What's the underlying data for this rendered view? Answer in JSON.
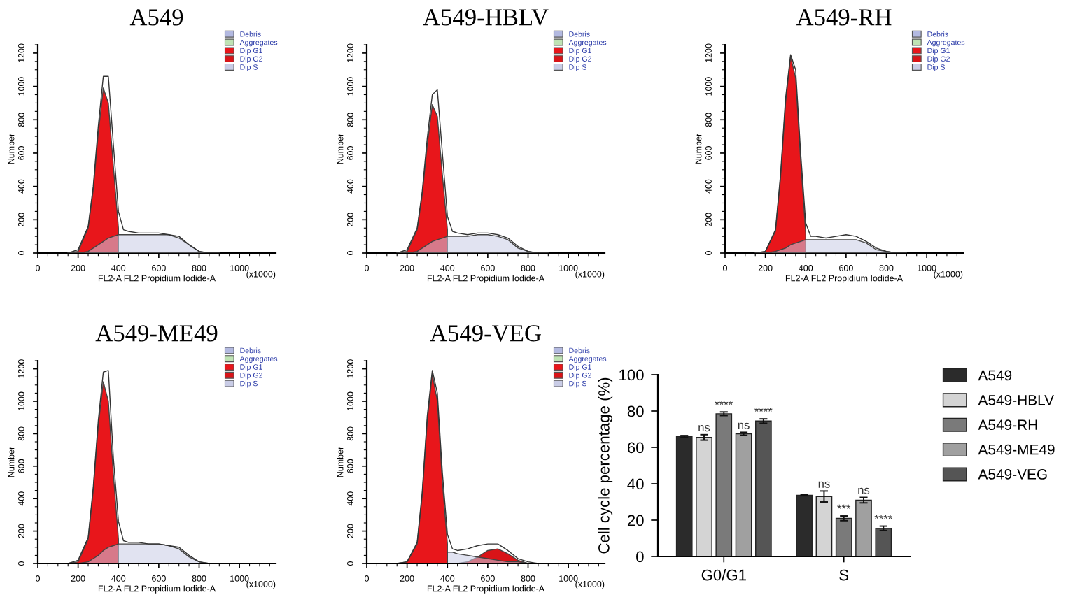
{
  "chart_data": [
    {
      "type": "area",
      "title": "A549",
      "xlabel": "FL2-A FL2 Propidium Iodide-A",
      "ylabel": "Number",
      "annotations": [
        "(x1000)"
      ],
      "xlim": [
        0,
        1180
      ],
      "ylim": [
        0,
        1250
      ],
      "xticks": [
        0,
        200,
        400,
        600,
        800,
        1000
      ],
      "yticks": [
        0,
        200,
        400,
        600,
        800,
        1000,
        1200
      ],
      "legend": "top right",
      "x": [
        150,
        200,
        250,
        275,
        300,
        325,
        350,
        375,
        400,
        425,
        450,
        500,
        550,
        600,
        650,
        700,
        750,
        800,
        850,
        900
      ],
      "series": [
        {
          "name": "Debris",
          "color": "#b3b9e0",
          "values": [
            null,
            null,
            null,
            null,
            null,
            null,
            null,
            null,
            null,
            null,
            null,
            null,
            null,
            null,
            null,
            null,
            null,
            null,
            null,
            null
          ]
        },
        {
          "name": "Aggregates",
          "color": "#bfe3b4",
          "values": [
            null,
            null,
            null,
            null,
            null,
            null,
            null,
            null,
            null,
            null,
            null,
            null,
            null,
            null,
            null,
            null,
            null,
            null,
            null,
            null
          ]
        },
        {
          "name": "Dip G1",
          "color": "#e8161b",
          "values": [
            0,
            10,
            150,
            380,
            720,
            990,
            900,
            520,
            150,
            null,
            null,
            null,
            null,
            null,
            null,
            null,
            null,
            null,
            null,
            null
          ]
        },
        {
          "name": "Dip G2",
          "color": "#d81418",
          "values": [
            null,
            null,
            null,
            null,
            null,
            null,
            null,
            null,
            null,
            null,
            null,
            null,
            null,
            null,
            null,
            null,
            null,
            null,
            null,
            null
          ]
        },
        {
          "name": "Dip S",
          "color": "#c9cce6",
          "values": [
            0,
            0,
            10,
            30,
            50,
            70,
            90,
            100,
            110,
            110,
            110,
            110,
            110,
            110,
            110,
            90,
            50,
            10,
            0,
            0
          ]
        },
        {
          "type": "line",
          "color": "#333333",
          "values": [
            0,
            20,
            160,
            400,
            760,
            1060,
            1060,
            650,
            250,
            140,
            130,
            120,
            120,
            120,
            110,
            100,
            50,
            10,
            0,
            0
          ]
        }
      ]
    },
    {
      "type": "area",
      "title": "A549-HBLV",
      "xlabel": "FL2-A FL2 Propidium Iodide-A",
      "ylabel": "Number",
      "annotations": [
        "(x1000)"
      ],
      "xlim": [
        0,
        1180
      ],
      "ylim": [
        0,
        1250
      ],
      "xticks": [
        0,
        200,
        400,
        600,
        800,
        1000
      ],
      "yticks": [
        0,
        200,
        400,
        600,
        800,
        1000,
        1200
      ],
      "legend": "top right",
      "x": [
        150,
        200,
        250,
        275,
        300,
        325,
        350,
        375,
        400,
        425,
        450,
        500,
        550,
        600,
        650,
        700,
        750,
        800,
        850,
        900
      ],
      "series": [
        {
          "name": "Debris",
          "color": "#b3b9e0",
          "values": [
            null,
            null,
            null,
            null,
            null,
            null,
            null,
            null,
            null,
            null,
            null,
            null,
            null,
            null,
            null,
            null,
            null,
            null,
            null,
            null
          ]
        },
        {
          "name": "Aggregates",
          "color": "#bfe3b4",
          "values": [
            null,
            null,
            null,
            null,
            null,
            null,
            null,
            null,
            null,
            null,
            null,
            null,
            null,
            null,
            null,
            null,
            null,
            null,
            null,
            null
          ]
        },
        {
          "name": "Dip G1",
          "color": "#e8161b",
          "values": [
            0,
            10,
            140,
            350,
            650,
            890,
            820,
            470,
            140,
            null,
            null,
            null,
            null,
            null,
            null,
            null,
            null,
            null,
            null,
            null
          ]
        },
        {
          "name": "Dip G2",
          "color": "#d81418",
          "values": [
            null,
            null,
            null,
            null,
            null,
            null,
            null,
            null,
            null,
            null,
            null,
            null,
            null,
            null,
            null,
            null,
            null,
            null,
            null,
            null
          ]
        },
        {
          "name": "Dip S",
          "color": "#c9cce6",
          "values": [
            0,
            0,
            10,
            30,
            50,
            70,
            80,
            90,
            100,
            100,
            100,
            100,
            110,
            110,
            100,
            80,
            30,
            10,
            0,
            0
          ]
        },
        {
          "type": "line",
          "color": "#333333",
          "values": [
            0,
            20,
            150,
            370,
            690,
            950,
            980,
            600,
            220,
            130,
            120,
            110,
            120,
            120,
            110,
            90,
            40,
            10,
            0,
            0
          ]
        }
      ]
    },
    {
      "type": "area",
      "title": "A549-RH",
      "xlabel": "FL2-A FL2 Propidium Iodide-A",
      "ylabel": "Number",
      "annotations": [
        "(x1000)"
      ],
      "xlim": [
        0,
        1180
      ],
      "ylim": [
        0,
        1250
      ],
      "xticks": [
        0,
        200,
        400,
        600,
        800,
        1000
      ],
      "yticks": [
        0,
        200,
        400,
        600,
        800,
        1000,
        1200
      ],
      "legend": "top right",
      "x": [
        150,
        200,
        250,
        275,
        300,
        325,
        350,
        375,
        400,
        425,
        450,
        500,
        550,
        600,
        650,
        700,
        750,
        800,
        850,
        900
      ],
      "series": [
        {
          "name": "Debris",
          "color": "#b3b9e0",
          "values": [
            null,
            null,
            null,
            null,
            null,
            null,
            null,
            null,
            null,
            null,
            null,
            null,
            null,
            null,
            null,
            null,
            null,
            null,
            null,
            null
          ]
        },
        {
          "name": "Aggregates",
          "color": "#bfe3b4",
          "values": [
            null,
            null,
            null,
            null,
            null,
            null,
            null,
            null,
            null,
            null,
            null,
            null,
            null,
            null,
            null,
            null,
            null,
            null,
            null,
            null
          ]
        },
        {
          "name": "Dip G1",
          "color": "#e8161b",
          "values": [
            0,
            10,
            130,
            450,
            900,
            1180,
            1050,
            550,
            120,
            null,
            null,
            null,
            null,
            null,
            null,
            null,
            null,
            null,
            null,
            null
          ]
        },
        {
          "name": "Dip G2",
          "color": "#d81418",
          "values": [
            null,
            null,
            null,
            null,
            null,
            null,
            null,
            null,
            null,
            null,
            null,
            null,
            null,
            null,
            null,
            null,
            null,
            null,
            null,
            null
          ]
        },
        {
          "name": "Dip S",
          "color": "#c9cce6",
          "values": [
            0,
            0,
            10,
            20,
            30,
            50,
            60,
            70,
            80,
            80,
            80,
            80,
            80,
            80,
            80,
            60,
            20,
            10,
            0,
            0
          ]
        },
        {
          "type": "line",
          "color": "#333333",
          "values": [
            0,
            10,
            140,
            470,
            930,
            1190,
            1100,
            600,
            180,
            100,
            100,
            90,
            100,
            110,
            100,
            70,
            30,
            10,
            0,
            0
          ]
        }
      ]
    },
    {
      "type": "area",
      "title": "A549-ME49",
      "xlabel": "FL2-A FL2 Propidium Iodide-A",
      "ylabel": "Number",
      "annotations": [
        "(x1000)"
      ],
      "xlim": [
        0,
        1180
      ],
      "ylim": [
        0,
        1250
      ],
      "xticks": [
        0,
        200,
        400,
        600,
        800,
        1000
      ],
      "yticks": [
        0,
        200,
        400,
        600,
        800,
        1000,
        1200
      ],
      "legend": "top right",
      "x": [
        150,
        200,
        250,
        275,
        300,
        325,
        350,
        375,
        400,
        425,
        450,
        500,
        550,
        600,
        650,
        700,
        750,
        800,
        850,
        900
      ],
      "series": [
        {
          "name": "Debris",
          "color": "#b3b9e0",
          "values": [
            null,
            null,
            null,
            null,
            null,
            null,
            null,
            null,
            null,
            null,
            null,
            null,
            null,
            null,
            null,
            null,
            null,
            null,
            null,
            null
          ]
        },
        {
          "name": "Aggregates",
          "color": "#bfe3b4",
          "values": [
            null,
            null,
            null,
            null,
            null,
            null,
            null,
            null,
            null,
            null,
            null,
            null,
            null,
            null,
            null,
            null,
            null,
            null,
            null,
            null
          ]
        },
        {
          "name": "Dip G1",
          "color": "#e8161b",
          "values": [
            0,
            10,
            150,
            450,
            850,
            1120,
            1000,
            550,
            150,
            null,
            null,
            null,
            null,
            null,
            null,
            null,
            null,
            null,
            null,
            null
          ]
        },
        {
          "name": "Dip G2",
          "color": "#d81418",
          "values": [
            null,
            null,
            null,
            null,
            null,
            null,
            null,
            null,
            null,
            null,
            null,
            null,
            null,
            null,
            null,
            null,
            null,
            null,
            null,
            null
          ]
        },
        {
          "name": "Dip S",
          "color": "#c9cce6",
          "values": [
            0,
            0,
            10,
            30,
            50,
            80,
            100,
            110,
            120,
            120,
            120,
            120,
            120,
            120,
            110,
            90,
            40,
            10,
            0,
            0
          ]
        },
        {
          "type": "line",
          "color": "#333333",
          "values": [
            0,
            20,
            160,
            470,
            880,
            1180,
            1190,
            650,
            260,
            140,
            130,
            130,
            120,
            120,
            110,
            100,
            50,
            10,
            0,
            0
          ]
        }
      ]
    },
    {
      "type": "area",
      "title": "A549-VEG",
      "xlabel": "FL2-A FL2 Propidium Iodide-A",
      "ylabel": "Number",
      "annotations": [
        "(x1000)"
      ],
      "xlim": [
        0,
        1180
      ],
      "ylim": [
        0,
        1250
      ],
      "xticks": [
        0,
        200,
        400,
        600,
        800,
        1000
      ],
      "yticks": [
        0,
        200,
        400,
        600,
        800,
        1000,
        1200
      ],
      "legend": "top right",
      "x": [
        150,
        200,
        250,
        275,
        300,
        325,
        350,
        375,
        400,
        425,
        450,
        500,
        550,
        600,
        650,
        700,
        750,
        800,
        850,
        900
      ],
      "series": [
        {
          "name": "Debris",
          "color": "#b3b9e0",
          "values": [
            null,
            null,
            null,
            null,
            null,
            null,
            null,
            null,
            null,
            null,
            null,
            null,
            null,
            null,
            null,
            null,
            null,
            null,
            null,
            null
          ]
        },
        {
          "name": "Aggregates",
          "color": "#bfe3b4",
          "values": [
            null,
            null,
            null,
            null,
            null,
            null,
            null,
            null,
            null,
            null,
            null,
            null,
            null,
            null,
            null,
            null,
            null,
            null,
            null,
            null
          ]
        },
        {
          "name": "Dip G1",
          "color": "#e8161b",
          "values": [
            0,
            10,
            120,
            420,
            880,
            1170,
            1000,
            500,
            120,
            null,
            null,
            null,
            null,
            null,
            null,
            null,
            null,
            null,
            null,
            null
          ]
        },
        {
          "name": "Dip G2",
          "color": "#d81418",
          "values": [
            0,
            0,
            0,
            0,
            0,
            0,
            0,
            0,
            0,
            0,
            0,
            10,
            40,
            80,
            90,
            60,
            20,
            0,
            0,
            0
          ]
        },
        {
          "name": "Dip S",
          "color": "#c9cce6",
          "values": [
            null,
            null,
            null,
            null,
            null,
            null,
            null,
            null,
            70,
            70,
            60,
            50,
            40,
            30,
            20,
            10,
            10,
            0,
            0,
            0
          ]
        },
        {
          "type": "line",
          "color": "#333333",
          "values": [
            0,
            10,
            130,
            440,
            910,
            1190,
            1050,
            560,
            180,
            90,
            80,
            90,
            110,
            120,
            120,
            80,
            30,
            10,
            0,
            0
          ]
        }
      ]
    },
    {
      "type": "bar",
      "ylabel": "Cell cycle percentage (%)",
      "categories": [
        "G0/G1",
        "S"
      ],
      "ylim": [
        0,
        100
      ],
      "yticks": [
        0,
        20,
        40,
        60,
        80,
        100
      ],
      "legend": "right",
      "series": [
        {
          "name": "A549",
          "color": "#2b2b2b",
          "values": [
            66,
            33.7
          ],
          "errors": [
            0.5,
            0.3
          ]
        },
        {
          "name": "A549-HBLV",
          "color": "#d4d4d4",
          "values": [
            65.5,
            33
          ],
          "errors": [
            1.5,
            3
          ],
          "value_labels": [
            "ns",
            "ns"
          ]
        },
        {
          "name": "A549-RH",
          "color": "#7a7a7a",
          "values": [
            78.5,
            21
          ],
          "errors": [
            1,
            1.3
          ],
          "value_labels": [
            "****",
            "***"
          ]
        },
        {
          "name": "A549-ME49",
          "color": "#a0a0a0",
          "values": [
            67.5,
            31
          ],
          "errors": [
            0.8,
            1.5
          ],
          "value_labels": [
            "ns",
            "ns"
          ]
        },
        {
          "name": "A549-VEG",
          "color": "#555555",
          "values": [
            74.5,
            15.5
          ],
          "errors": [
            1.2,
            1.2
          ],
          "value_labels": [
            "****",
            "****"
          ]
        }
      ]
    }
  ]
}
